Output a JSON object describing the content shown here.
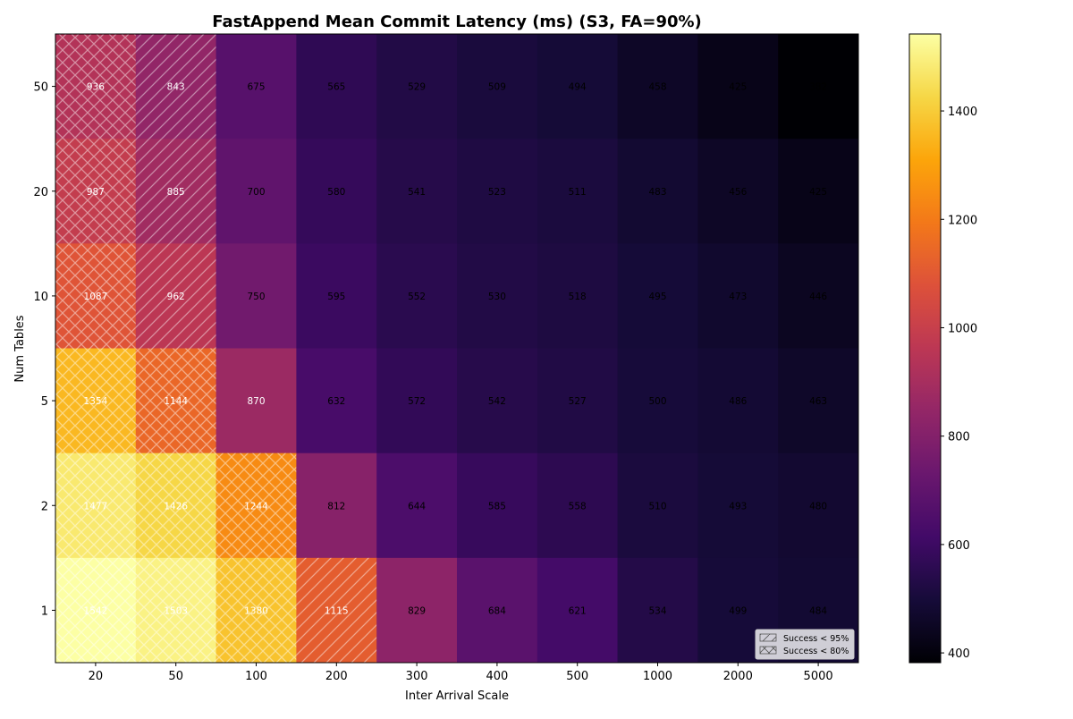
{
  "chart_data": {
    "type": "heatmap",
    "title": "FastAppend Mean Commit Latency (ms) (S3, FA=90%)",
    "xlabel": "Inter Arrival Scale",
    "ylabel": "Num Tables",
    "x_categories": [
      "20",
      "50",
      "100",
      "200",
      "300",
      "400",
      "500",
      "1000",
      "2000",
      "5000"
    ],
    "y_categories": [
      "50",
      "20",
      "10",
      "5",
      "2",
      "1"
    ],
    "values": [
      [
        936,
        843,
        675,
        565,
        529,
        509,
        494,
        458,
        425,
        382
      ],
      [
        987,
        885,
        700,
        580,
        541,
        523,
        511,
        483,
        456,
        425
      ],
      [
        1087,
        962,
        750,
        595,
        552,
        530,
        518,
        495,
        473,
        446
      ],
      [
        1354,
        1144,
        870,
        632,
        572,
        542,
        527,
        500,
        486,
        463
      ],
      [
        1477,
        1426,
        1244,
        812,
        644,
        585,
        558,
        510,
        493,
        480
      ],
      [
        1542,
        1503,
        1380,
        1115,
        829,
        684,
        621,
        534,
        499,
        484
      ]
    ],
    "hatch": [
      [
        "x",
        "/",
        "",
        "",
        "",
        "",
        "",
        "",
        "",
        ""
      ],
      [
        "x",
        "/",
        "",
        "",
        "",
        "",
        "",
        "",
        "",
        ""
      ],
      [
        "x",
        "/",
        "",
        "",
        "",
        "",
        "",
        "",
        "",
        ""
      ],
      [
        "x",
        "x",
        "",
        "",
        "",
        "",
        "",
        "",
        "",
        ""
      ],
      [
        "x",
        "x",
        "x",
        "",
        "",
        "",
        "",
        "",
        "",
        ""
      ],
      [
        "x",
        "x",
        "x",
        "/",
        "",
        "",
        "",
        "",
        "",
        ""
      ]
    ],
    "colormap": "inferno",
    "color_range": [
      382,
      1542
    ],
    "colorbar_ticks": [
      "400",
      "600",
      "800",
      "1000",
      "1200",
      "1400"
    ],
    "legend": {
      "position": "lower-right",
      "entries": [
        {
          "label": "Success < 95%",
          "hatch": "/"
        },
        {
          "label": "Success < 80%",
          "hatch": "x"
        }
      ]
    }
  }
}
